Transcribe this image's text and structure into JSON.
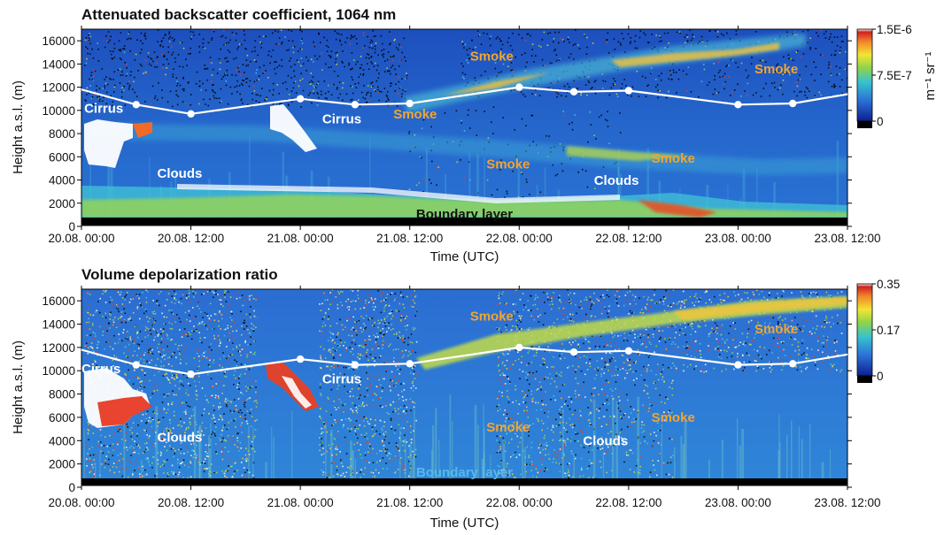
{
  "chart_data": [
    {
      "type": "heatmap",
      "title": "Attenuated backscatter coefficient, 1064 nm",
      "xlabel": "Time (UTC)",
      "ylabel": "Height a.s.l. (m)",
      "xlim_hours": [
        0,
        84
      ],
      "ylim": [
        0,
        17000
      ],
      "x_ticks": [
        {
          "hours": 0,
          "label": "20.08. 00:00"
        },
        {
          "hours": 12,
          "label": "20.08. 12:00"
        },
        {
          "hours": 24,
          "label": "21.08. 00:00"
        },
        {
          "hours": 36,
          "label": "21.08. 12:00"
        },
        {
          "hours": 48,
          "label": "22.08. 00:00"
        },
        {
          "hours": 60,
          "label": "22.08. 12:00"
        },
        {
          "hours": 72,
          "label": "23.08. 00:00"
        },
        {
          "hours": 84,
          "label": "23.08. 12:00"
        }
      ],
      "y_ticks": [
        0,
        2000,
        4000,
        6000,
        8000,
        10000,
        12000,
        14000,
        16000
      ],
      "colorbar": {
        "unit_label": "m⁻¹ sr⁻¹",
        "ticks": [
          {
            "value": 0,
            "label": "0"
          },
          {
            "value": 0.5,
            "label": "7.5E-7"
          },
          {
            "value": 1,
            "label": "1.5E-6"
          }
        ]
      },
      "tropopause_series": {
        "x_hours": [
          0,
          6,
          12,
          24,
          30,
          36,
          48,
          54,
          60,
          72,
          78,
          84
        ],
        "height_m": [
          11800,
          10500,
          9700,
          11000,
          10500,
          10600,
          12000,
          11600,
          11700,
          10500,
          10600,
          11400
        ],
        "marked_points": [
          1,
          2,
          3,
          4,
          5,
          6,
          7,
          8,
          9,
          10
        ]
      },
      "annotations": [
        {
          "text": "Cirrus",
          "x_hours": 0.3,
          "y_m": 9800,
          "color": "#ffffff"
        },
        {
          "text": "Cirrus",
          "x_hours": 26.4,
          "y_m": 8900,
          "color": "#ffffff"
        },
        {
          "text": "Smoke",
          "x_hours": 42.6,
          "y_m": 14300,
          "color": "#f2a530"
        },
        {
          "text": "Smoke",
          "x_hours": 34.2,
          "y_m": 9300,
          "color": "#f2a530"
        },
        {
          "text": "Smoke",
          "x_hours": 44.4,
          "y_m": 5000,
          "color": "#f2a530"
        },
        {
          "text": "Smoke",
          "x_hours": 62.5,
          "y_m": 5500,
          "color": "#f2a530"
        },
        {
          "text": "Smoke",
          "x_hours": 73.8,
          "y_m": 13200,
          "color": "#f2a530"
        },
        {
          "text": "Clouds",
          "x_hours": 8.3,
          "y_m": 4200,
          "color": "#ffffff"
        },
        {
          "text": "Clouds",
          "x_hours": 56.2,
          "y_m": 3600,
          "color": "#ffffff"
        },
        {
          "text": "Boundary layer",
          "x_hours": 36.7,
          "y_m": 700,
          "color": "#111111"
        }
      ]
    },
    {
      "type": "heatmap",
      "title": "Volume depolarization ratio",
      "xlabel": "Time (UTC)",
      "ylabel": "Height a.s.l. (m)",
      "xlim_hours": [
        0,
        84
      ],
      "ylim": [
        0,
        17000
      ],
      "x_ticks": [
        {
          "hours": 0,
          "label": "20.08. 00:00"
        },
        {
          "hours": 12,
          "label": "20.08. 12:00"
        },
        {
          "hours": 24,
          "label": "21.08. 00:00"
        },
        {
          "hours": 36,
          "label": "21.08. 12:00"
        },
        {
          "hours": 48,
          "label": "22.08. 00:00"
        },
        {
          "hours": 60,
          "label": "22.08. 12:00"
        },
        {
          "hours": 72,
          "label": "23.08. 00:00"
        },
        {
          "hours": 84,
          "label": "23.08. 12:00"
        }
      ],
      "y_ticks": [
        0,
        2000,
        4000,
        6000,
        8000,
        10000,
        12000,
        14000,
        16000
      ],
      "colorbar": {
        "unit_label": "",
        "ticks": [
          {
            "value": 0,
            "label": "0"
          },
          {
            "value": 0.5,
            "label": "0.17"
          },
          {
            "value": 1,
            "label": "0.35"
          }
        ]
      },
      "tropopause_series": {
        "x_hours": [
          0,
          6,
          12,
          24,
          30,
          36,
          48,
          54,
          60,
          72,
          78,
          84
        ],
        "height_m": [
          11800,
          10500,
          9700,
          11000,
          10500,
          10600,
          12000,
          11600,
          11700,
          10500,
          10600,
          11400
        ],
        "marked_points": [
          1,
          2,
          3,
          4,
          5,
          6,
          7,
          8,
          9,
          10
        ]
      },
      "annotations": [
        {
          "text": "Cirrus",
          "x_hours": 0.0,
          "y_m": 9800,
          "color": "#ffffff"
        },
        {
          "text": "Cirrus",
          "x_hours": 26.4,
          "y_m": 8900,
          "color": "#ffffff"
        },
        {
          "text": "Smoke",
          "x_hours": 42.6,
          "y_m": 14300,
          "color": "#f2a530"
        },
        {
          "text": "Smoke",
          "x_hours": 44.4,
          "y_m": 4800,
          "color": "#f2a530"
        },
        {
          "text": "Smoke",
          "x_hours": 62.5,
          "y_m": 5600,
          "color": "#f2a530"
        },
        {
          "text": "Smoke",
          "x_hours": 73.8,
          "y_m": 13200,
          "color": "#f2a530"
        },
        {
          "text": "Clouds",
          "x_hours": 8.3,
          "y_m": 3900,
          "color": "#ffffff"
        },
        {
          "text": "Clouds",
          "x_hours": 55.0,
          "y_m": 3600,
          "color": "#ffffff"
        },
        {
          "text": "Boundary layer",
          "x_hours": 36.7,
          "y_m": 900,
          "color": "#58b8e8"
        }
      ]
    }
  ]
}
